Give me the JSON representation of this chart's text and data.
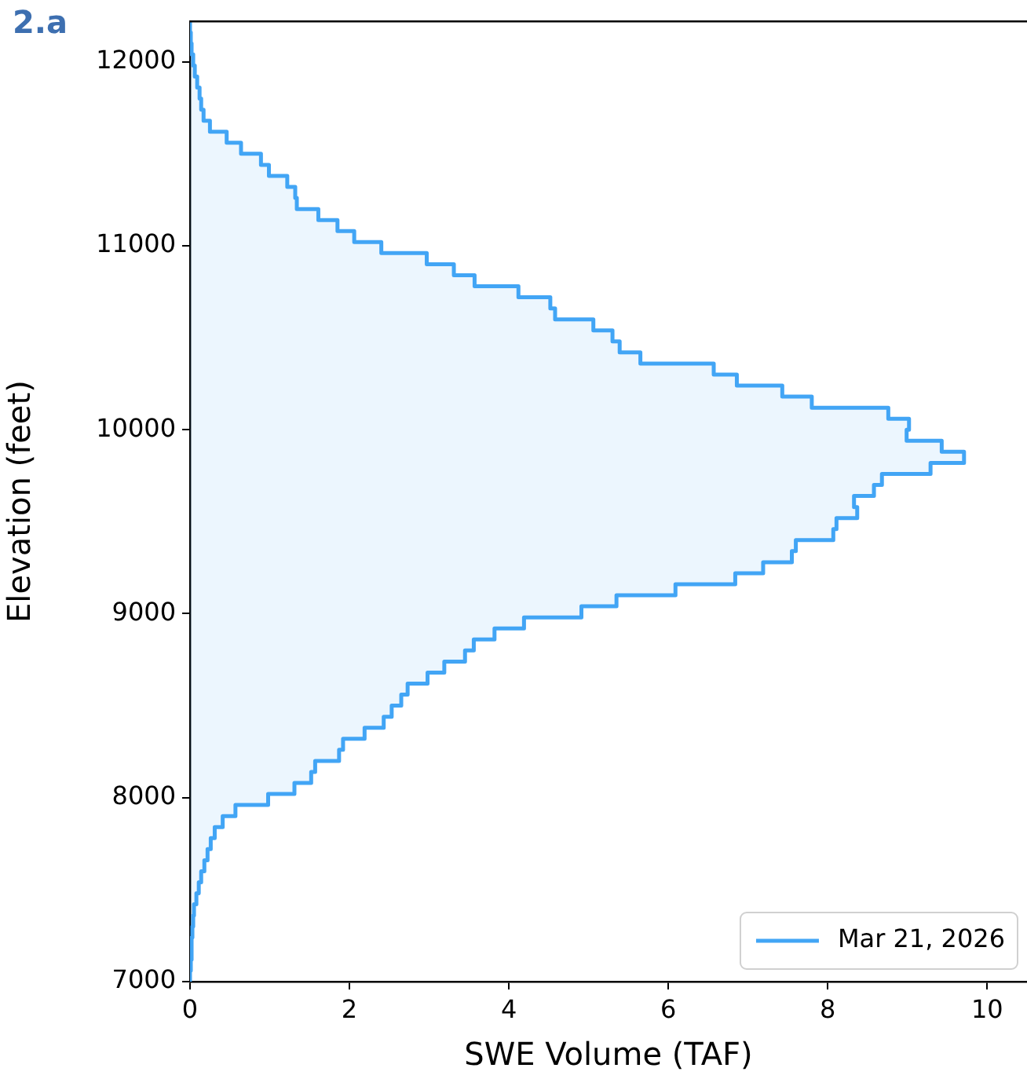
{
  "chart_data": {
    "type": "histogram",
    "orientation": "horizontal",
    "xlabel": "SWE Volume (TAF)",
    "ylabel": "Elevation (feet)",
    "annotations": [
      "2.a"
    ],
    "bins": [
      7000,
      7060,
      7120,
      7180,
      7240,
      7300,
      7360,
      7420,
      7480,
      7540,
      7600,
      7660,
      7720,
      7780,
      7840,
      7900,
      7960,
      8020,
      8080,
      8140,
      8200,
      8260,
      8320,
      8380,
      8440,
      8500,
      8560,
      8620,
      8680,
      8740,
      8800,
      8860,
      8920,
      8980,
      9040,
      9100,
      9160,
      9220,
      9280,
      9340,
      9400,
      9460,
      9520,
      9580,
      9640,
      9700,
      9760,
      9820,
      9880,
      9940,
      10000,
      10060,
      10120,
      10180,
      10240,
      10300,
      10360,
      10420,
      10480,
      10540,
      10600,
      10660,
      10720,
      10780,
      10840,
      10900,
      10960,
      11020,
      11080,
      11140,
      11200,
      11260,
      11320,
      11380,
      11440,
      11500,
      11560,
      11620,
      11680,
      11740,
      11800,
      11860,
      11920,
      11980,
      12040,
      12100,
      12160,
      12220
    ],
    "series": [
      {
        "name": "Mar 21, 2026",
        "color": "#42a5f5",
        "values": [
          0.0,
          0.01,
          0.02,
          0.02,
          0.03,
          0.04,
          0.05,
          0.08,
          0.11,
          0.14,
          0.18,
          0.22,
          0.26,
          0.31,
          0.41,
          0.57,
          0.98,
          1.31,
          1.52,
          1.57,
          1.87,
          1.92,
          2.19,
          2.43,
          2.53,
          2.65,
          2.73,
          2.98,
          3.19,
          3.45,
          3.56,
          3.82,
          4.19,
          4.91,
          5.35,
          6.09,
          6.84,
          7.19,
          7.55,
          7.6,
          8.07,
          8.11,
          8.37,
          8.33,
          8.58,
          8.68,
          9.29,
          9.71,
          9.43,
          8.99,
          9.02,
          8.76,
          7.8,
          7.43,
          6.86,
          6.57,
          5.65,
          5.39,
          5.3,
          5.06,
          4.58,
          4.52,
          4.12,
          3.57,
          3.31,
          2.97,
          2.4,
          2.06,
          1.85,
          1.61,
          1.34,
          1.32,
          1.22,
          0.99,
          0.89,
          0.64,
          0.46,
          0.25,
          0.17,
          0.14,
          0.12,
          0.09,
          0.06,
          0.04,
          0.02,
          0.01,
          0.0
        ]
      }
    ],
    "xlim": [
      0,
      10.5
    ],
    "xticks": [
      0,
      2,
      4,
      6,
      8,
      10
    ],
    "ylim": [
      7000,
      12220
    ],
    "yticks": [
      7000,
      8000,
      9000,
      10000,
      11000,
      12000
    ],
    "grid": false,
    "legend": "bottom right"
  }
}
